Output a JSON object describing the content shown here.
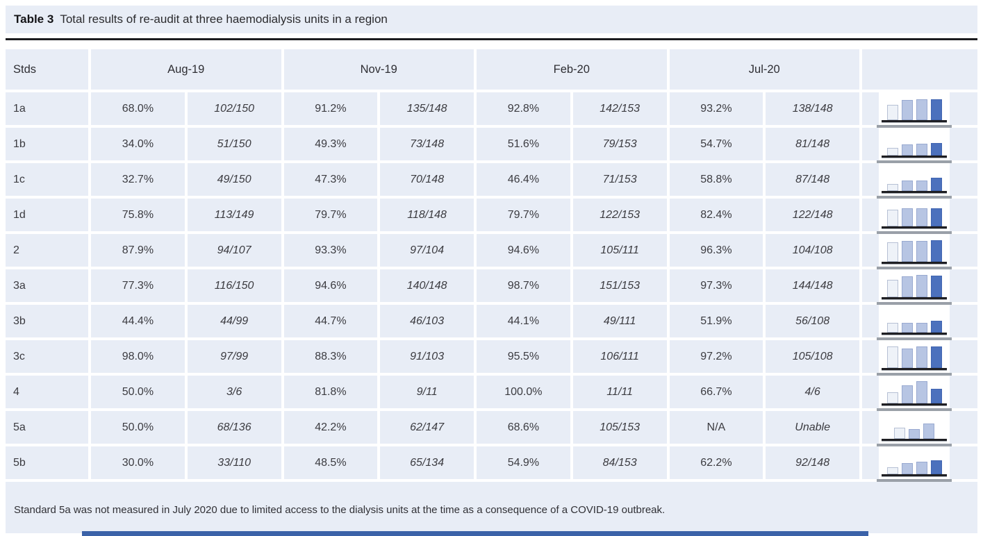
{
  "title": {
    "prefix": "Table 3",
    "text": "Total results of re-audit at three haemodialysis units in a region"
  },
  "columns": {
    "stds": "Stds",
    "periods": [
      "Aug-19",
      "Nov-19",
      "Feb-20",
      "Jul-20"
    ]
  },
  "rows": [
    {
      "std": "1a",
      "values": [
        {
          "pct": "68.0%",
          "frac": "102/150"
        },
        {
          "pct": "91.2%",
          "frac": "135/148"
        },
        {
          "pct": "92.8%",
          "frac": "142/153"
        },
        {
          "pct": "93.2%",
          "frac": "138/148"
        }
      ],
      "spark": [
        68.0,
        91.2,
        92.8,
        93.2
      ]
    },
    {
      "std": "1b",
      "values": [
        {
          "pct": "34.0%",
          "frac": "51/150"
        },
        {
          "pct": "49.3%",
          "frac": "73/148"
        },
        {
          "pct": "51.6%",
          "frac": "79/153"
        },
        {
          "pct": "54.7%",
          "frac": "81/148"
        }
      ],
      "spark": [
        34.0,
        49.3,
        51.6,
        54.7
      ]
    },
    {
      "std": "1c",
      "values": [
        {
          "pct": "32.7%",
          "frac": "49/150"
        },
        {
          "pct": "47.3%",
          "frac": "70/148"
        },
        {
          "pct": "46.4%",
          "frac": "71/153"
        },
        {
          "pct": "58.8%",
          "frac": "87/148"
        }
      ],
      "spark": [
        32.7,
        47.3,
        46.4,
        58.8
      ]
    },
    {
      "std": "1d",
      "values": [
        {
          "pct": "75.8%",
          "frac": "113/149"
        },
        {
          "pct": "79.7%",
          "frac": "118/148"
        },
        {
          "pct": "79.7%",
          "frac": "122/153"
        },
        {
          "pct": "82.4%",
          "frac": "122/148"
        }
      ],
      "spark": [
        75.8,
        79.7,
        79.7,
        82.4
      ]
    },
    {
      "std": "2",
      "values": [
        {
          "pct": "87.9%",
          "frac": "94/107"
        },
        {
          "pct": "93.3%",
          "frac": "97/104"
        },
        {
          "pct": "94.6%",
          "frac": "105/111"
        },
        {
          "pct": "96.3%",
          "frac": "104/108"
        }
      ],
      "spark": [
        87.9,
        93.3,
        94.6,
        96.3
      ]
    },
    {
      "std": "3a",
      "values": [
        {
          "pct": "77.3%",
          "frac": "116/150"
        },
        {
          "pct": "94.6%",
          "frac": "140/148"
        },
        {
          "pct": "98.7%",
          "frac": "151/153"
        },
        {
          "pct": "97.3%",
          "frac": "144/148"
        }
      ],
      "spark": [
        77.3,
        94.6,
        98.7,
        97.3
      ]
    },
    {
      "std": "3b",
      "values": [
        {
          "pct": "44.4%",
          "frac": "44/99"
        },
        {
          "pct": "44.7%",
          "frac": "46/103"
        },
        {
          "pct": "44.1%",
          "frac": "49/111"
        },
        {
          "pct": "51.9%",
          "frac": "56/108"
        }
      ],
      "spark": [
        44.4,
        44.7,
        44.1,
        51.9
      ]
    },
    {
      "std": "3c",
      "values": [
        {
          "pct": "98.0%",
          "frac": "97/99"
        },
        {
          "pct": "88.3%",
          "frac": "91/103"
        },
        {
          "pct": "95.5%",
          "frac": "106/111"
        },
        {
          "pct": "97.2%",
          "frac": "105/108"
        }
      ],
      "spark": [
        98.0,
        88.3,
        95.5,
        97.2
      ]
    },
    {
      "std": "4",
      "values": [
        {
          "pct": "50.0%",
          "frac": "3/6"
        },
        {
          "pct": "81.8%",
          "frac": "9/11"
        },
        {
          "pct": "100.0%",
          "frac": "11/11"
        },
        {
          "pct": "66.7%",
          "frac": "4/6"
        }
      ],
      "spark": [
        50.0,
        81.8,
        100.0,
        66.7
      ]
    },
    {
      "std": "5a",
      "values": [
        {
          "pct": "50.0%",
          "frac": "68/136"
        },
        {
          "pct": "42.2%",
          "frac": "62/147"
        },
        {
          "pct": "68.6%",
          "frac": "105/153"
        },
        {
          "pct": "N/A",
          "frac": "Unable"
        }
      ],
      "spark": [
        50.0,
        42.2,
        68.6
      ]
    },
    {
      "std": "5b",
      "values": [
        {
          "pct": "30.0%",
          "frac": "33/110"
        },
        {
          "pct": "48.5%",
          "frac": "65/134"
        },
        {
          "pct": "54.9%",
          "frac": "84/153"
        },
        {
          "pct": "62.2%",
          "frac": "92/148"
        }
      ],
      "spark": [
        30.0,
        48.5,
        54.9,
        62.2
      ]
    }
  ],
  "footnote": "Standard 5a was not measured in July 2020 due to limited access to the dialysis units at the time as a consequence of a COVID-19 outbreak.",
  "colors": {
    "band": "#e8edf6",
    "bar_pale": "#eef2f8",
    "bar_light": "#b7c5e3",
    "bar_dark": "#4c71bd",
    "separator_gray": "#9aa0a8",
    "bottom_accent": "#3b62a8"
  }
}
